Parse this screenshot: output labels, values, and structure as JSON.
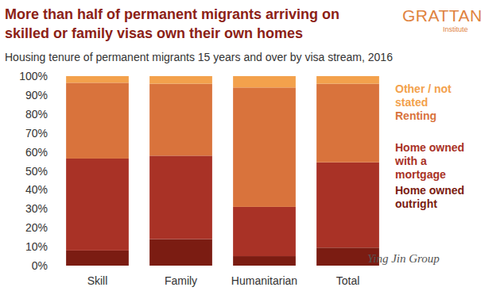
{
  "chart_data": {
    "type": "bar",
    "stacked": true,
    "title": "More than half of permanent migrants arriving on skilled or family visas own their own homes",
    "subtitle": "Housing tenure of permanent migrants 15 years and over by visa stream, 2016",
    "logo": "GRATTAN",
    "logo_subtitle": "Institute",
    "watermark": "Ying Jin Group",
    "categories": [
      "Skill",
      "Family",
      "Humanitarian",
      "Total"
    ],
    "series": [
      {
        "name": "Home owned outright",
        "color": "#7b1c12",
        "values": [
          8,
          14,
          5,
          9.5
        ]
      },
      {
        "name": "Home owned with a mortgage",
        "color": "#a93226",
        "values": [
          48.5,
          44,
          26,
          45
        ]
      },
      {
        "name": "Renting",
        "color": "#d9733c",
        "values": [
          40,
          38,
          63,
          41.5
        ]
      },
      {
        "name": "Other / not stated",
        "color": "#f3a14c",
        "values": [
          3.5,
          4,
          6,
          4
        ]
      }
    ],
    "ylim": [
      0,
      100
    ],
    "yticks": [
      {
        "value": 0,
        "label": "0%"
      },
      {
        "value": 10,
        "label": "10%"
      },
      {
        "value": 20,
        "label": "20%"
      },
      {
        "value": 30,
        "label": "30%"
      },
      {
        "value": 40,
        "label": "40%"
      },
      {
        "value": 50,
        "label": "50%"
      },
      {
        "value": 60,
        "label": "60%"
      },
      {
        "value": 70,
        "label": "70%"
      },
      {
        "value": 80,
        "label": "80%"
      },
      {
        "value": 90,
        "label": "90%"
      },
      {
        "value": 100,
        "label": "100%"
      }
    ],
    "grid": false,
    "legend": "right"
  }
}
